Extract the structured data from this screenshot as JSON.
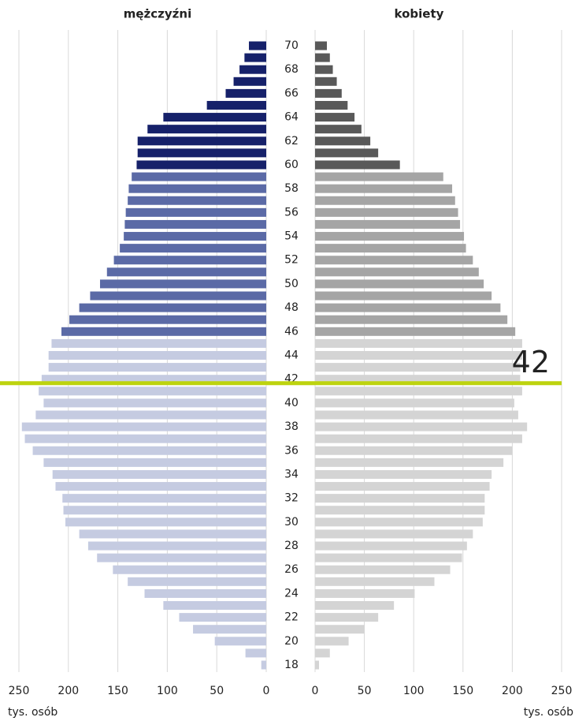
{
  "chart_data": {
    "type": "pyramid",
    "categories": [
      18,
      null,
      20,
      null,
      22,
      null,
      24,
      null,
      26,
      null,
      28,
      null,
      30,
      null,
      32,
      null,
      34,
      null,
      36,
      null,
      38,
      null,
      40,
      null,
      42,
      null,
      44,
      null,
      46,
      null,
      48,
      null,
      50,
      null,
      52,
      null,
      54,
      null,
      56,
      null,
      58,
      null,
      60,
      null,
      62,
      null,
      64,
      null,
      66,
      null,
      68,
      null,
      70
    ],
    "series": [
      {
        "name": "mężczyźni",
        "side": "left",
        "values": [
          5,
          21,
          52,
          74,
          88,
          104,
          123,
          140,
          155,
          171,
          180,
          189,
          203,
          205,
          206,
          213,
          216,
          225,
          236,
          244,
          247,
          233,
          225,
          230,
          227,
          220,
          220,
          217,
          207,
          199,
          189,
          178,
          168,
          161,
          154,
          148,
          144,
          143,
          142,
          140,
          139,
          136,
          131,
          130,
          130,
          120,
          104,
          60,
          41,
          33,
          27,
          22,
          17.5
        ],
        "colors": [
          "#c5cbe1",
          "#c5cbe1",
          "#c5cbe1",
          "#c5cbe1",
          "#c5cbe1",
          "#c5cbe1",
          "#c5cbe1",
          "#c5cbe1",
          "#c5cbe1",
          "#c5cbe1",
          "#c5cbe1",
          "#c5cbe1",
          "#c5cbe1",
          "#c5cbe1",
          "#c5cbe1",
          "#c5cbe1",
          "#c5cbe1",
          "#c5cbe1",
          "#c5cbe1",
          "#c5cbe1",
          "#c5cbe1",
          "#c5cbe1",
          "#c5cbe1",
          "#c5cbe1",
          "#c5cbe1",
          "#c5cbe1",
          "#c5cbe1",
          "#c5cbe1",
          "#5b6aa6",
          "#5b6aa6",
          "#5b6aa6",
          "#5b6aa6",
          "#5b6aa6",
          "#5b6aa6",
          "#5b6aa6",
          "#5b6aa6",
          "#5b6aa6",
          "#5b6aa6",
          "#5b6aa6",
          "#5b6aa6",
          "#5b6aa6",
          "#5b6aa6",
          "#16216a",
          "#16216a",
          "#16216a",
          "#16216a",
          "#16216a",
          "#16216a",
          "#16216a",
          "#16216a",
          "#16216a",
          "#16216a",
          "#16216a"
        ]
      },
      {
        "name": "kobiety",
        "side": "right",
        "values": [
          4,
          15,
          34,
          50,
          64,
          80,
          101,
          121,
          137,
          149,
          154,
          160,
          170,
          172,
          172,
          177,
          179,
          191,
          200,
          210,
          215,
          206,
          202,
          210,
          208,
          208,
          210,
          210,
          203,
          195,
          188,
          179,
          171,
          166,
          160,
          153,
          151,
          147,
          145,
          142,
          139,
          130,
          86,
          64,
          56,
          47,
          40,
          33,
          27,
          22,
          18,
          15,
          12
        ],
        "colors": [
          "#d4d4d4",
          "#d4d4d4",
          "#d4d4d4",
          "#d4d4d4",
          "#d4d4d4",
          "#d4d4d4",
          "#d4d4d4",
          "#d4d4d4",
          "#d4d4d4",
          "#d4d4d4",
          "#d4d4d4",
          "#d4d4d4",
          "#d4d4d4",
          "#d4d4d4",
          "#d4d4d4",
          "#d4d4d4",
          "#d4d4d4",
          "#d4d4d4",
          "#d4d4d4",
          "#d4d4d4",
          "#d4d4d4",
          "#d4d4d4",
          "#d4d4d4",
          "#d4d4d4",
          "#d4d4d4",
          "#d4d4d4",
          "#d4d4d4",
          "#d4d4d4",
          "#a5a5a5",
          "#a5a5a5",
          "#a5a5a5",
          "#a5a5a5",
          "#a5a5a5",
          "#a5a5a5",
          "#a5a5a5",
          "#a5a5a5",
          "#a5a5a5",
          "#a5a5a5",
          "#a5a5a5",
          "#a5a5a5",
          "#a5a5a5",
          "#a5a5a5",
          "#595959",
          "#595959",
          "#595959",
          "#595959",
          "#595959",
          "#595959",
          "#595959",
          "#595959",
          "#595959",
          "#595959",
          "#595959"
        ]
      }
    ],
    "xlim": [
      0,
      250
    ],
    "xticks": [
      0,
      50,
      100,
      150,
      200,
      250
    ],
    "x_label": "tys. osób",
    "grid": true,
    "highlight": {
      "value": 42,
      "label": "42",
      "color": "#bdd30e"
    }
  }
}
